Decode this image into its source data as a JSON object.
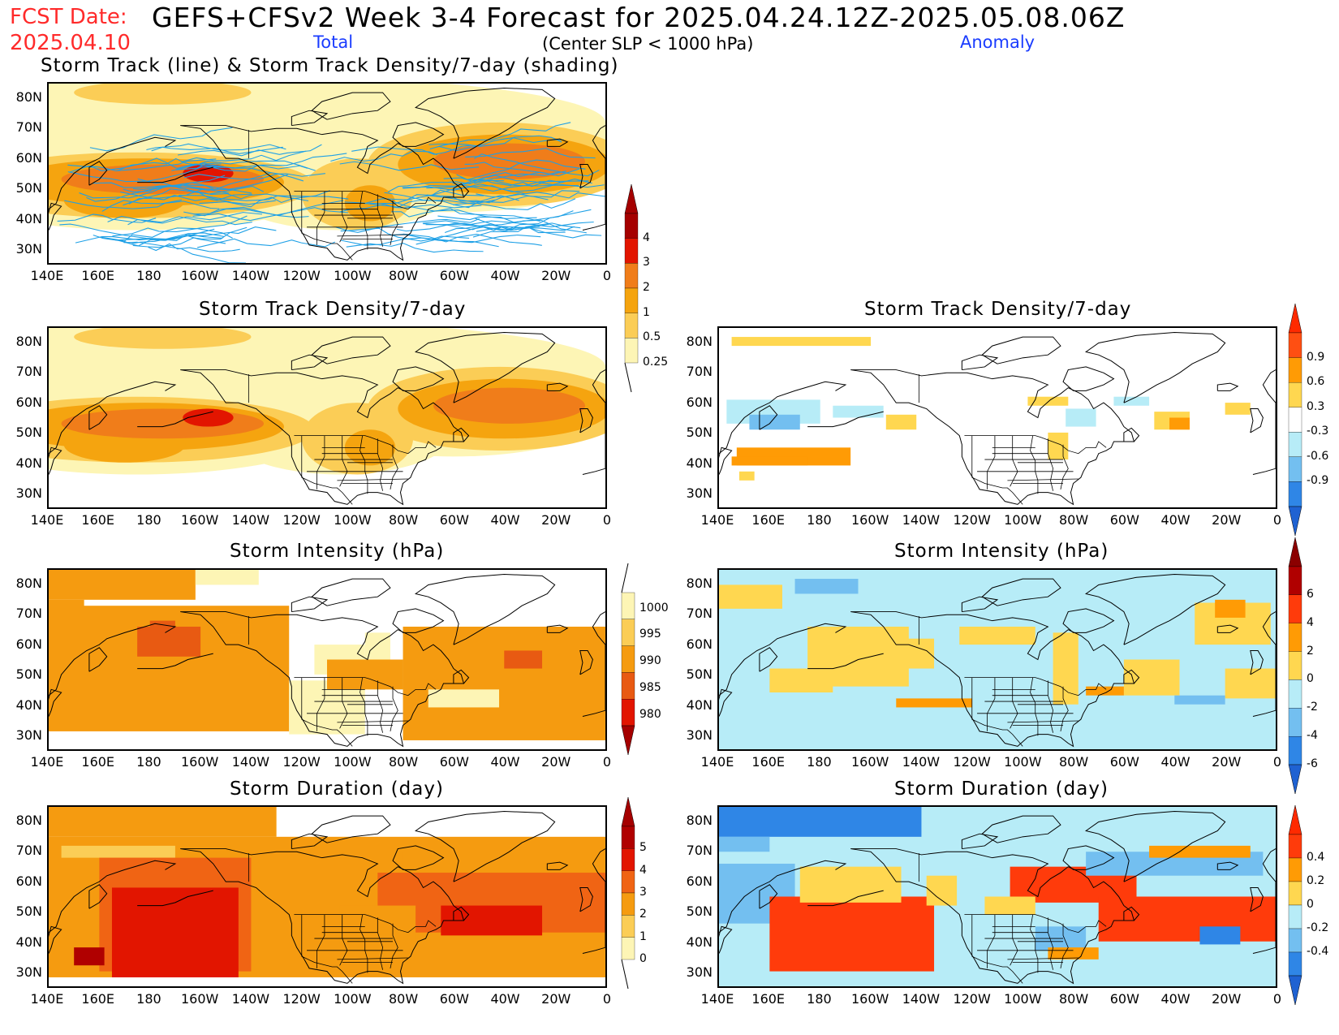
{
  "header": {
    "fcst_label": "FCST Date:",
    "fcst_date": "2025.04.10",
    "title": "GEFS+CFSv2 Week 3-4 Forecast for 2025.04.24.12Z-2025.05.08.06Z",
    "total_label": "Total",
    "anomaly_label": "Anomaly",
    "criteria": "(Center SLP < 1000 hPa)"
  },
  "axes": {
    "lat_labels": [
      "80N",
      "70N",
      "60N",
      "50N",
      "40N",
      "30N"
    ],
    "lon_labels": [
      "140E",
      "160E",
      "180",
      "160W",
      "140W",
      "120W",
      "100W",
      "80W",
      "60W",
      "40W",
      "20W",
      "0"
    ]
  },
  "panels": {
    "track": {
      "title": "Storm Track (line) & Storm Track Density/7-day (shading)"
    },
    "density_total": {
      "title": "Storm Track Density/7-day"
    },
    "density_anom": {
      "title": "Storm Track Density/7-day"
    },
    "intensity_total": {
      "title": "Storm Intensity (hPa)"
    },
    "intensity_anom": {
      "title": "Storm Intensity (hPa)"
    },
    "duration_total": {
      "title": "Storm Duration (day)"
    },
    "duration_anom": {
      "title": "Storm Duration (day)"
    }
  },
  "colorbars": {
    "density_total": {
      "labels": [
        "4",
        "3",
        "2",
        "1",
        "0.5",
        "0.25"
      ],
      "colors": [
        "#a50000",
        "#e21500",
        "#f07d1a",
        "#f5a40f",
        "#fbcd56",
        "#fdf5b5"
      ],
      "top_triangle": "#a50000",
      "bottom_triangle": "none"
    },
    "density_anom": {
      "labels": [
        "0.9",
        "0.6",
        "0.3",
        "-0.3",
        "-0.6",
        "-0.9"
      ],
      "colors": [
        "#ff4f12",
        "#ff9b05",
        "#ffd750",
        "#ffffff",
        "#b7ecf7",
        "#73bff0",
        "#2f86e6"
      ],
      "top_triangle": "#ff2a00",
      "bottom_triangle": "#1f62d2"
    },
    "intensity_total": {
      "labels": [
        "1000",
        "995",
        "990",
        "985",
        "980"
      ],
      "colors": [
        "#fdf5b5",
        "#fbcd56",
        "#f59b10",
        "#e85a12",
        "#e21500"
      ],
      "top_triangle": "none",
      "bottom_triangle": "#a50000"
    },
    "intensity_anom": {
      "labels": [
        "6",
        "4",
        "2",
        "0",
        "-2",
        "-4",
        "-6"
      ],
      "colors": [
        "#b00000",
        "#ff3b0b",
        "#ff9b05",
        "#ffd750",
        "#b7ecf7",
        "#73bff0",
        "#2f86e6"
      ],
      "top_triangle": "#8b0000",
      "bottom_triangle": "#1f62d2"
    },
    "duration_total": {
      "labels": [
        "5",
        "4",
        "3",
        "2",
        "1",
        "0"
      ],
      "colors": [
        "#b00000",
        "#e21500",
        "#f06414",
        "#f59b10",
        "#fbcd56",
        "#fdf5b5"
      ],
      "top_triangle": "#a50000",
      "bottom_triangle": "none"
    },
    "duration_anom": {
      "labels": [
        "0.4",
        "0.2",
        "0",
        "-0.2",
        "-0.4"
      ],
      "colors": [
        "#ff3b0b",
        "#ff9b05",
        "#ffd750",
        "#b7ecf7",
        "#73bff0",
        "#2f86e6"
      ],
      "top_triangle": "#ff2a00",
      "bottom_triangle": "#1f62d2"
    }
  }
}
